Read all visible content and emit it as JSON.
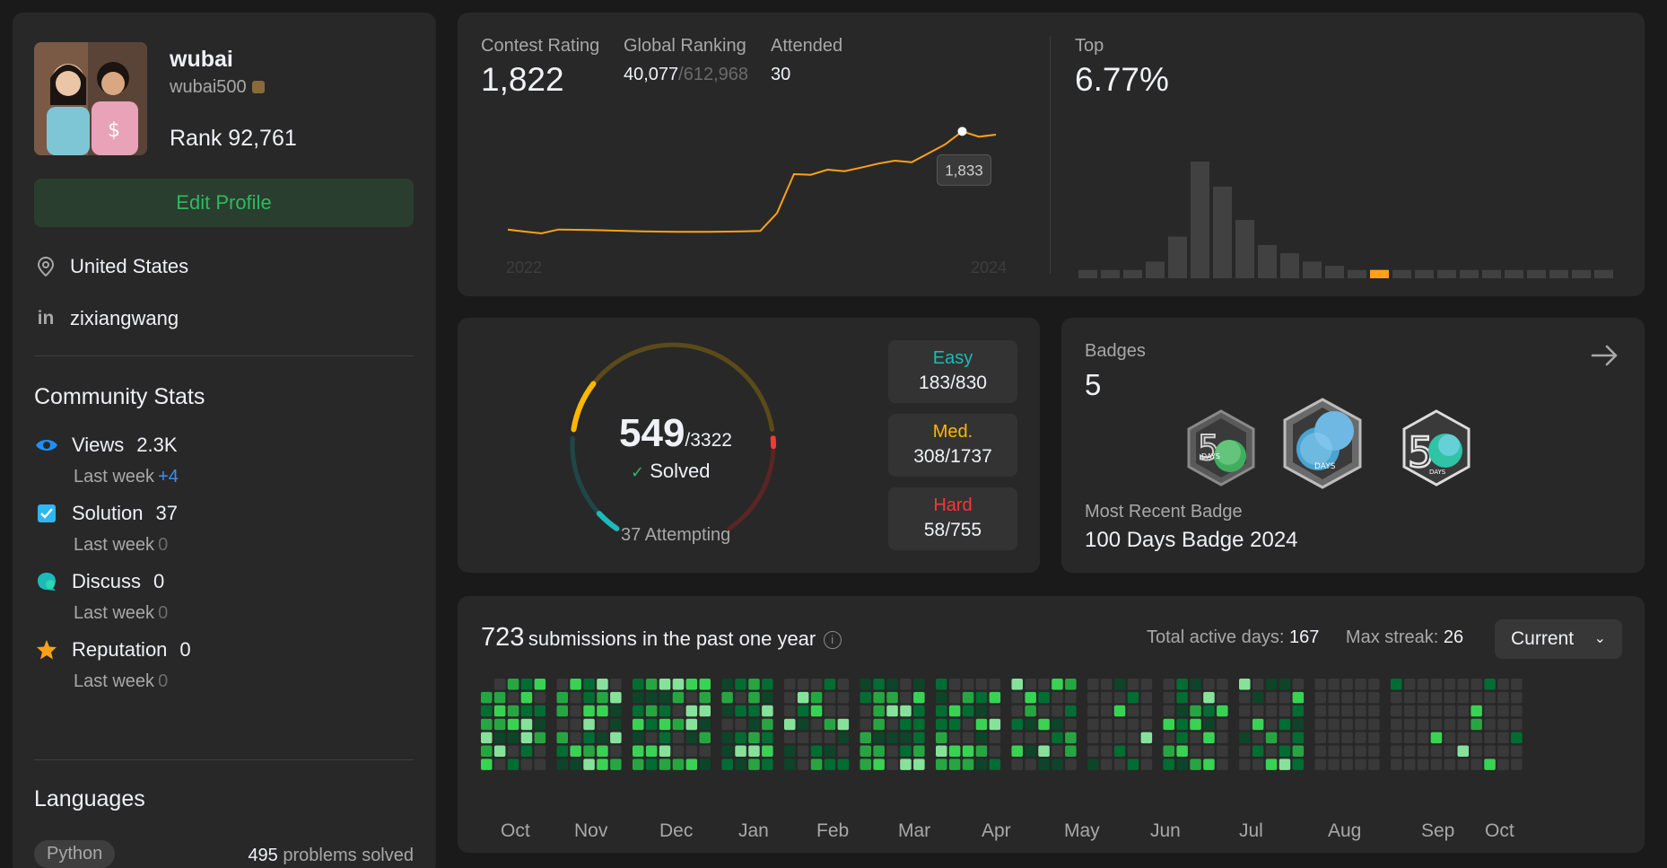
{
  "profile": {
    "display_name": "wubai",
    "username": "wubai500",
    "rank": "Rank 92,761",
    "edit_label": "Edit Profile",
    "location": "United States",
    "linkedin": "zixiangwang"
  },
  "community": {
    "title": "Community Stats",
    "stats": [
      {
        "label": "Views",
        "value": "2.3K",
        "sub": "Last week",
        "delta": "+4",
        "delta_color": "#3c8ef8",
        "icon": "eye-icon",
        "color": "#1a90ff"
      },
      {
        "label": "Solution",
        "value": "37",
        "sub": "Last week",
        "delta": "0",
        "delta_color": "#6b6b6b",
        "icon": "checkbox-icon",
        "color": "#2db7f5"
      },
      {
        "label": "Discuss",
        "value": "0",
        "sub": "Last week",
        "delta": "0",
        "delta_color": "#6b6b6b",
        "icon": "chat-icon",
        "color": "#1cbaba"
      },
      {
        "label": "Reputation",
        "value": "0",
        "sub": "Last week",
        "delta": "0",
        "delta_color": "#6b6b6b",
        "icon": "star-icon",
        "color": "#ffa116"
      }
    ]
  },
  "languages": {
    "title": "Languages",
    "items": [
      {
        "name": "Python",
        "count": "495",
        "suffix": "problems solved"
      }
    ]
  },
  "contest": {
    "rating_label": "Contest Rating",
    "rating": "1,822",
    "ranking_label": "Global Ranking",
    "ranking": "40,077",
    "ranking_total": "/612,968",
    "attended_label": "Attended",
    "attended": "30",
    "top_label": "Top",
    "top_value": "6.77%",
    "tooltip": "1,833",
    "year_start": "2022",
    "year_end": "2024"
  },
  "chart_data": [
    {
      "type": "line",
      "x": [
        0,
        1,
        2,
        3,
        4,
        5,
        6,
        7,
        8,
        9,
        10,
        11,
        12,
        13,
        14,
        15,
        16,
        17,
        18,
        19,
        20,
        21,
        22,
        23,
        24,
        25,
        26,
        27,
        28,
        29
      ],
      "y": [
        1505,
        1498,
        1492,
        1505,
        1504,
        1503,
        1502,
        1500,
        1499,
        1498,
        1497,
        1497,
        1497,
        1498,
        1499,
        1500,
        1560,
        1690,
        1688,
        1705,
        1700,
        1712,
        1725,
        1735,
        1730,
        1760,
        1790,
        1833,
        1815,
        1822
      ],
      "x_tick_labels": [
        "2022",
        "2024"
      ],
      "highlight_point": {
        "index": 27,
        "value": 1833
      }
    },
    {
      "type": "bar",
      "values": [
        1,
        1,
        1,
        2,
        5,
        14,
        11,
        7,
        4,
        3,
        2,
        1.5,
        1,
        1,
        1,
        1,
        1,
        1,
        1,
        1,
        1,
        1,
        1,
        1
      ],
      "highlight_index": 13,
      "highlight_color": "#ffa116",
      "bar_color": "#414141"
    }
  ],
  "solved": {
    "count": "549",
    "total": "/3322",
    "solved_label": "Solved",
    "attempting": "37 Attempting",
    "difficulties": [
      {
        "label": "Easy",
        "value": "183/830",
        "color": "#1cbaba",
        "solved": 183,
        "total": 830
      },
      {
        "label": "Med.",
        "value": "308/1737",
        "color": "#ffb700",
        "solved": 308,
        "total": 1737
      },
      {
        "label": "Hard",
        "value": "58/755",
        "color": "#f63737",
        "solved": 58,
        "total": 755
      }
    ]
  },
  "badges": {
    "label": "Badges",
    "count": "5",
    "recent_label": "Most Recent Badge",
    "recent_name": "100 Days Badge 2024",
    "items": [
      {
        "name": "50-days-badge-icon",
        "text": "DAYS"
      },
      {
        "name": "100-days-badge-icon",
        "text": "DAYS"
      },
      {
        "name": "50-days-badge-2-icon",
        "text": "DAYS"
      }
    ]
  },
  "submissions": {
    "count": "723",
    "text": "submissions in the past one year",
    "active_label": "Total active days:",
    "active_value": "167",
    "streak_label": "Max streak:",
    "streak_value": "26",
    "dropdown": "Current",
    "months": [
      "Oct",
      "Nov",
      "Dec",
      "Jan",
      "Feb",
      "Mar",
      "Apr",
      "May",
      "Jun",
      "Jul",
      "Aug",
      "Sep",
      "Oct"
    ],
    "colors": [
      "#393939",
      "#0e4429",
      "#006d32",
      "#26a641",
      "#39d353",
      "#86e29b"
    ]
  }
}
